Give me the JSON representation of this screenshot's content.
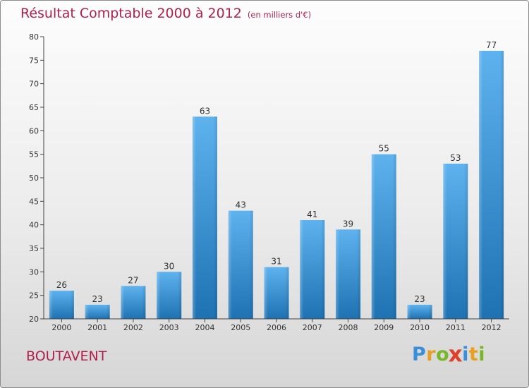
{
  "header": {
    "title": "Résultat Comptable 2000 à 2012",
    "subtitle": "(en milliers d'€)"
  },
  "place_name": "BOUTAVENT",
  "logo": {
    "letters": [
      "P",
      "r",
      "o",
      "x",
      "i",
      "t",
      "i"
    ],
    "colors": [
      "#3a8fd8",
      "#e8a020",
      "#78b828",
      "#e0402a",
      "#3a8fd8",
      "#e8a020",
      "#78b828"
    ]
  },
  "colors": {
    "bar_light": "#5eb2ee",
    "bar_dark": "#1f72b2",
    "title": "#b0204d",
    "axis": "#444444"
  },
  "chart_data": {
    "type": "bar",
    "title": "Résultat Comptable 2000 à 2012",
    "subtitle": "(en milliers d'€)",
    "xlabel": "",
    "ylabel": "",
    "categories": [
      "2000",
      "2001",
      "2002",
      "2003",
      "2004",
      "2005",
      "2006",
      "2007",
      "2008",
      "2009",
      "2010",
      "2011",
      "2012"
    ],
    "values": [
      26,
      23,
      27,
      30,
      63,
      43,
      31,
      41,
      39,
      55,
      23,
      53,
      77
    ],
    "ylim": [
      20,
      80
    ],
    "yticks": [
      20,
      25,
      30,
      35,
      40,
      45,
      50,
      55,
      60,
      65,
      70,
      75,
      80
    ],
    "grid": false,
    "data_labels": true
  }
}
